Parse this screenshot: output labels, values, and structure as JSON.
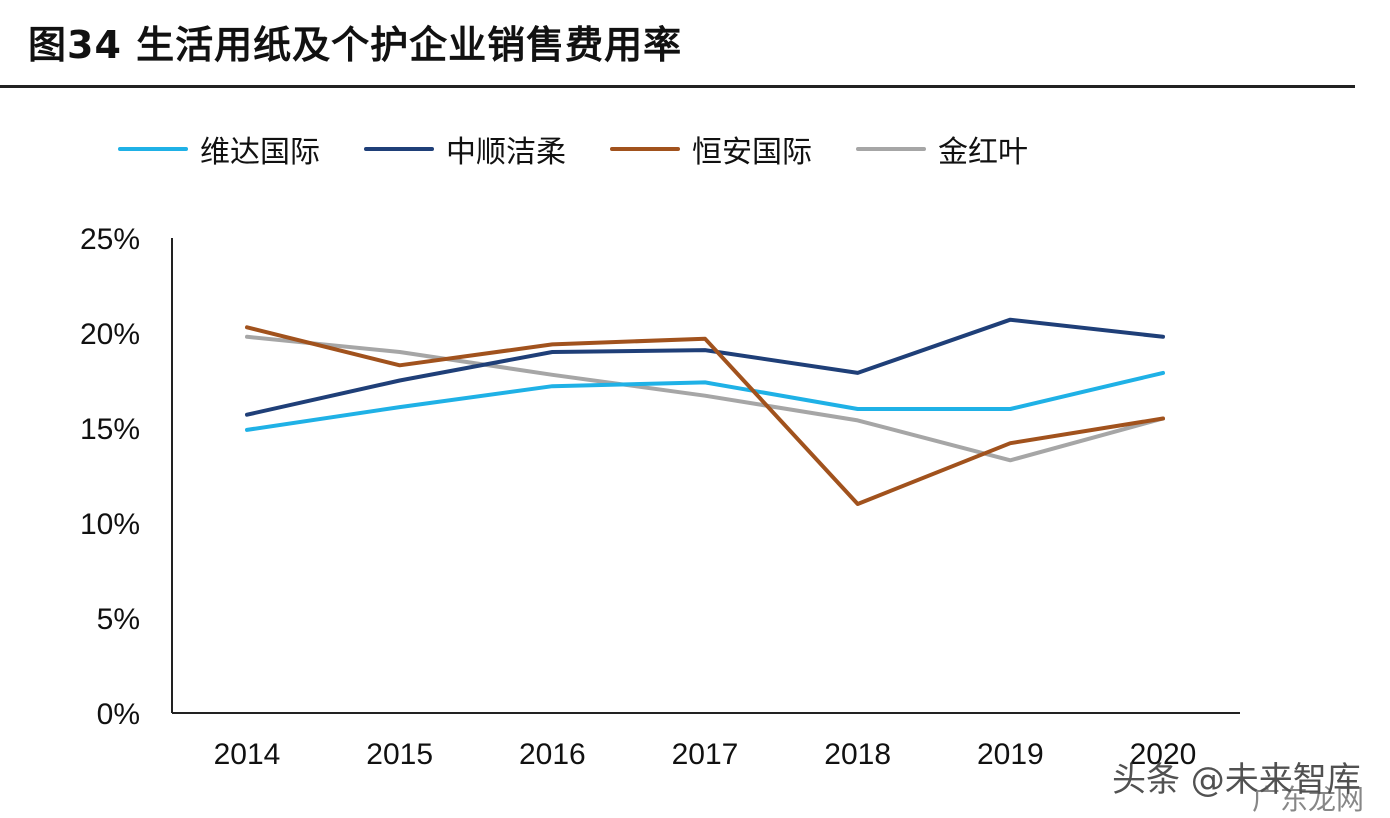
{
  "title": "图34 生活用纸及个护企业销售费用率",
  "watermark": {
    "primary": "头条 @未来智库",
    "secondary": "广东龙网"
  },
  "chart_data": {
    "type": "line",
    "title": "图34 生活用纸及个护企业销售费用率",
    "xlabel": "",
    "ylabel": "",
    "categories": [
      "2014",
      "2015",
      "2016",
      "2017",
      "2018",
      "2019",
      "2020"
    ],
    "ylim": [
      0,
      25
    ],
    "yticks": [
      0,
      5,
      10,
      15,
      20,
      25
    ],
    "ytick_labels": [
      "0%",
      "5%",
      "10%",
      "15%",
      "20%",
      "25%"
    ],
    "grid": false,
    "legend_position": "top-left",
    "series": [
      {
        "name": "维达国际",
        "color": "#1fb1e6",
        "values": [
          14.9,
          16.1,
          17.2,
          17.4,
          16.0,
          16.0,
          17.9
        ]
      },
      {
        "name": "中顺洁柔",
        "color": "#1f3f78",
        "values": [
          15.7,
          17.5,
          19.0,
          19.1,
          17.9,
          20.7,
          19.8
        ]
      },
      {
        "name": "恒安国际",
        "color": "#a1521d",
        "values": [
          20.3,
          18.3,
          19.4,
          19.7,
          11.0,
          14.2,
          15.5
        ]
      },
      {
        "name": "金红叶",
        "color": "#a6a6a6",
        "values": [
          19.8,
          19.0,
          17.8,
          16.7,
          15.4,
          13.3,
          15.5
        ]
      }
    ]
  }
}
